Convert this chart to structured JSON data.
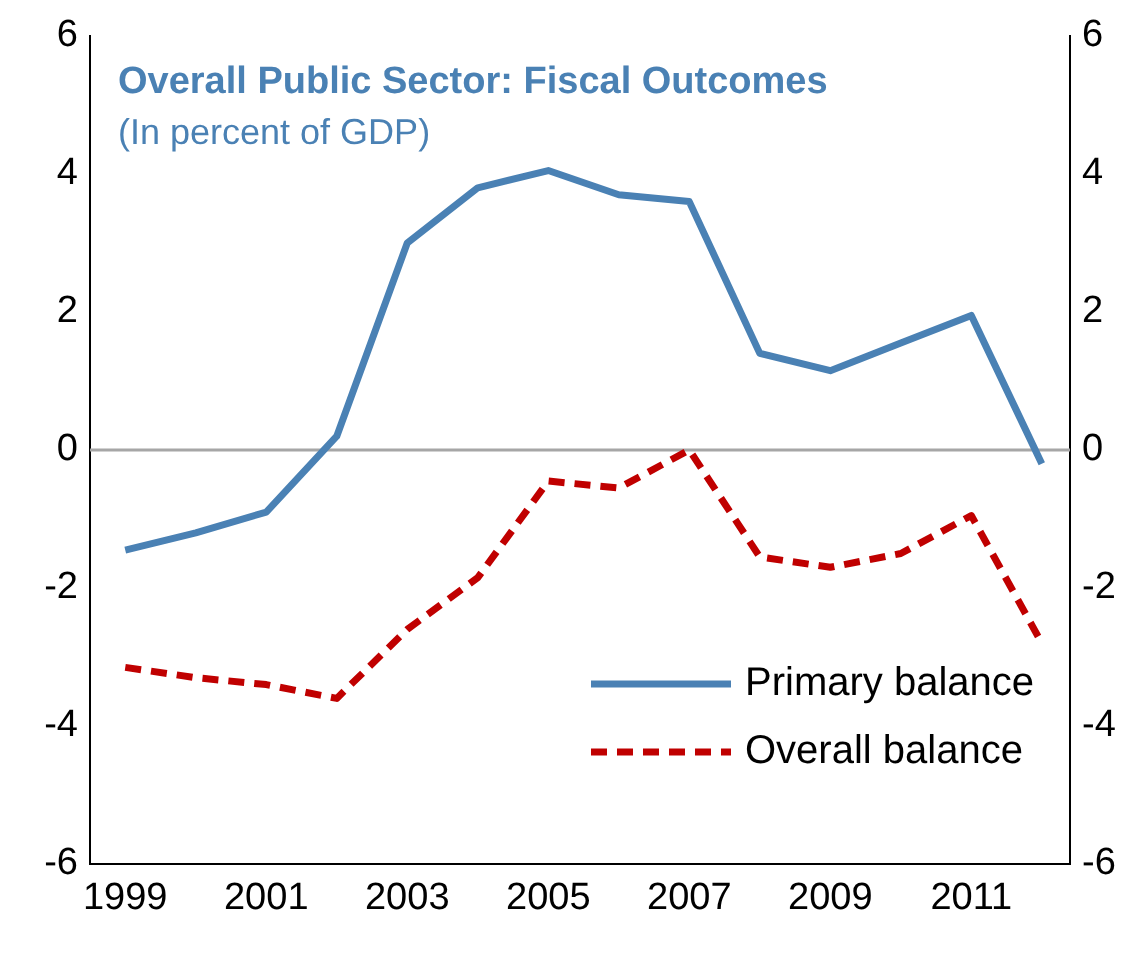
{
  "chart_data": {
    "type": "line",
    "title": "Overall Public Sector: Fiscal Outcomes",
    "subtitle": "(In percent of GDP)",
    "x": [
      1999,
      2000,
      2001,
      2002,
      2003,
      2004,
      2005,
      2006,
      2007,
      2008,
      2009,
      2010,
      2011,
      2012
    ],
    "series": [
      {
        "name": "Primary balance",
        "color": "#4a81b4",
        "line_style": "solid",
        "values": [
          -1.45,
          -1.2,
          -0.9,
          0.2,
          3.0,
          3.8,
          4.05,
          3.7,
          3.6,
          1.4,
          1.15,
          1.55,
          1.95,
          -0.2
        ]
      },
      {
        "name": "Overall balance",
        "color": "#c00000",
        "line_style": "dashed",
        "values": [
          -3.15,
          -3.3,
          -3.4,
          -3.6,
          -2.6,
          -1.85,
          -0.45,
          -0.55,
          0.0,
          -1.55,
          -1.7,
          -1.5,
          -0.95,
          -2.8
        ]
      }
    ],
    "xlim": [
      1998.5,
      2012.4
    ],
    "xticks": [
      1999,
      2001,
      2003,
      2005,
      2007,
      2009,
      2011
    ],
    "ylim": [
      -6,
      6
    ],
    "yticks": [
      -6,
      -4,
      -2,
      0,
      2,
      4,
      6
    ],
    "y2lim": [
      -6,
      6
    ],
    "y2ticks": [
      -6,
      -4,
      -2,
      0,
      2,
      4,
      6
    ],
    "ref_lines": [
      {
        "axis": "y",
        "value": 0,
        "color": "#a6a6a6"
      }
    ],
    "grid": false,
    "legend": "bottom right",
    "marker": "none"
  }
}
